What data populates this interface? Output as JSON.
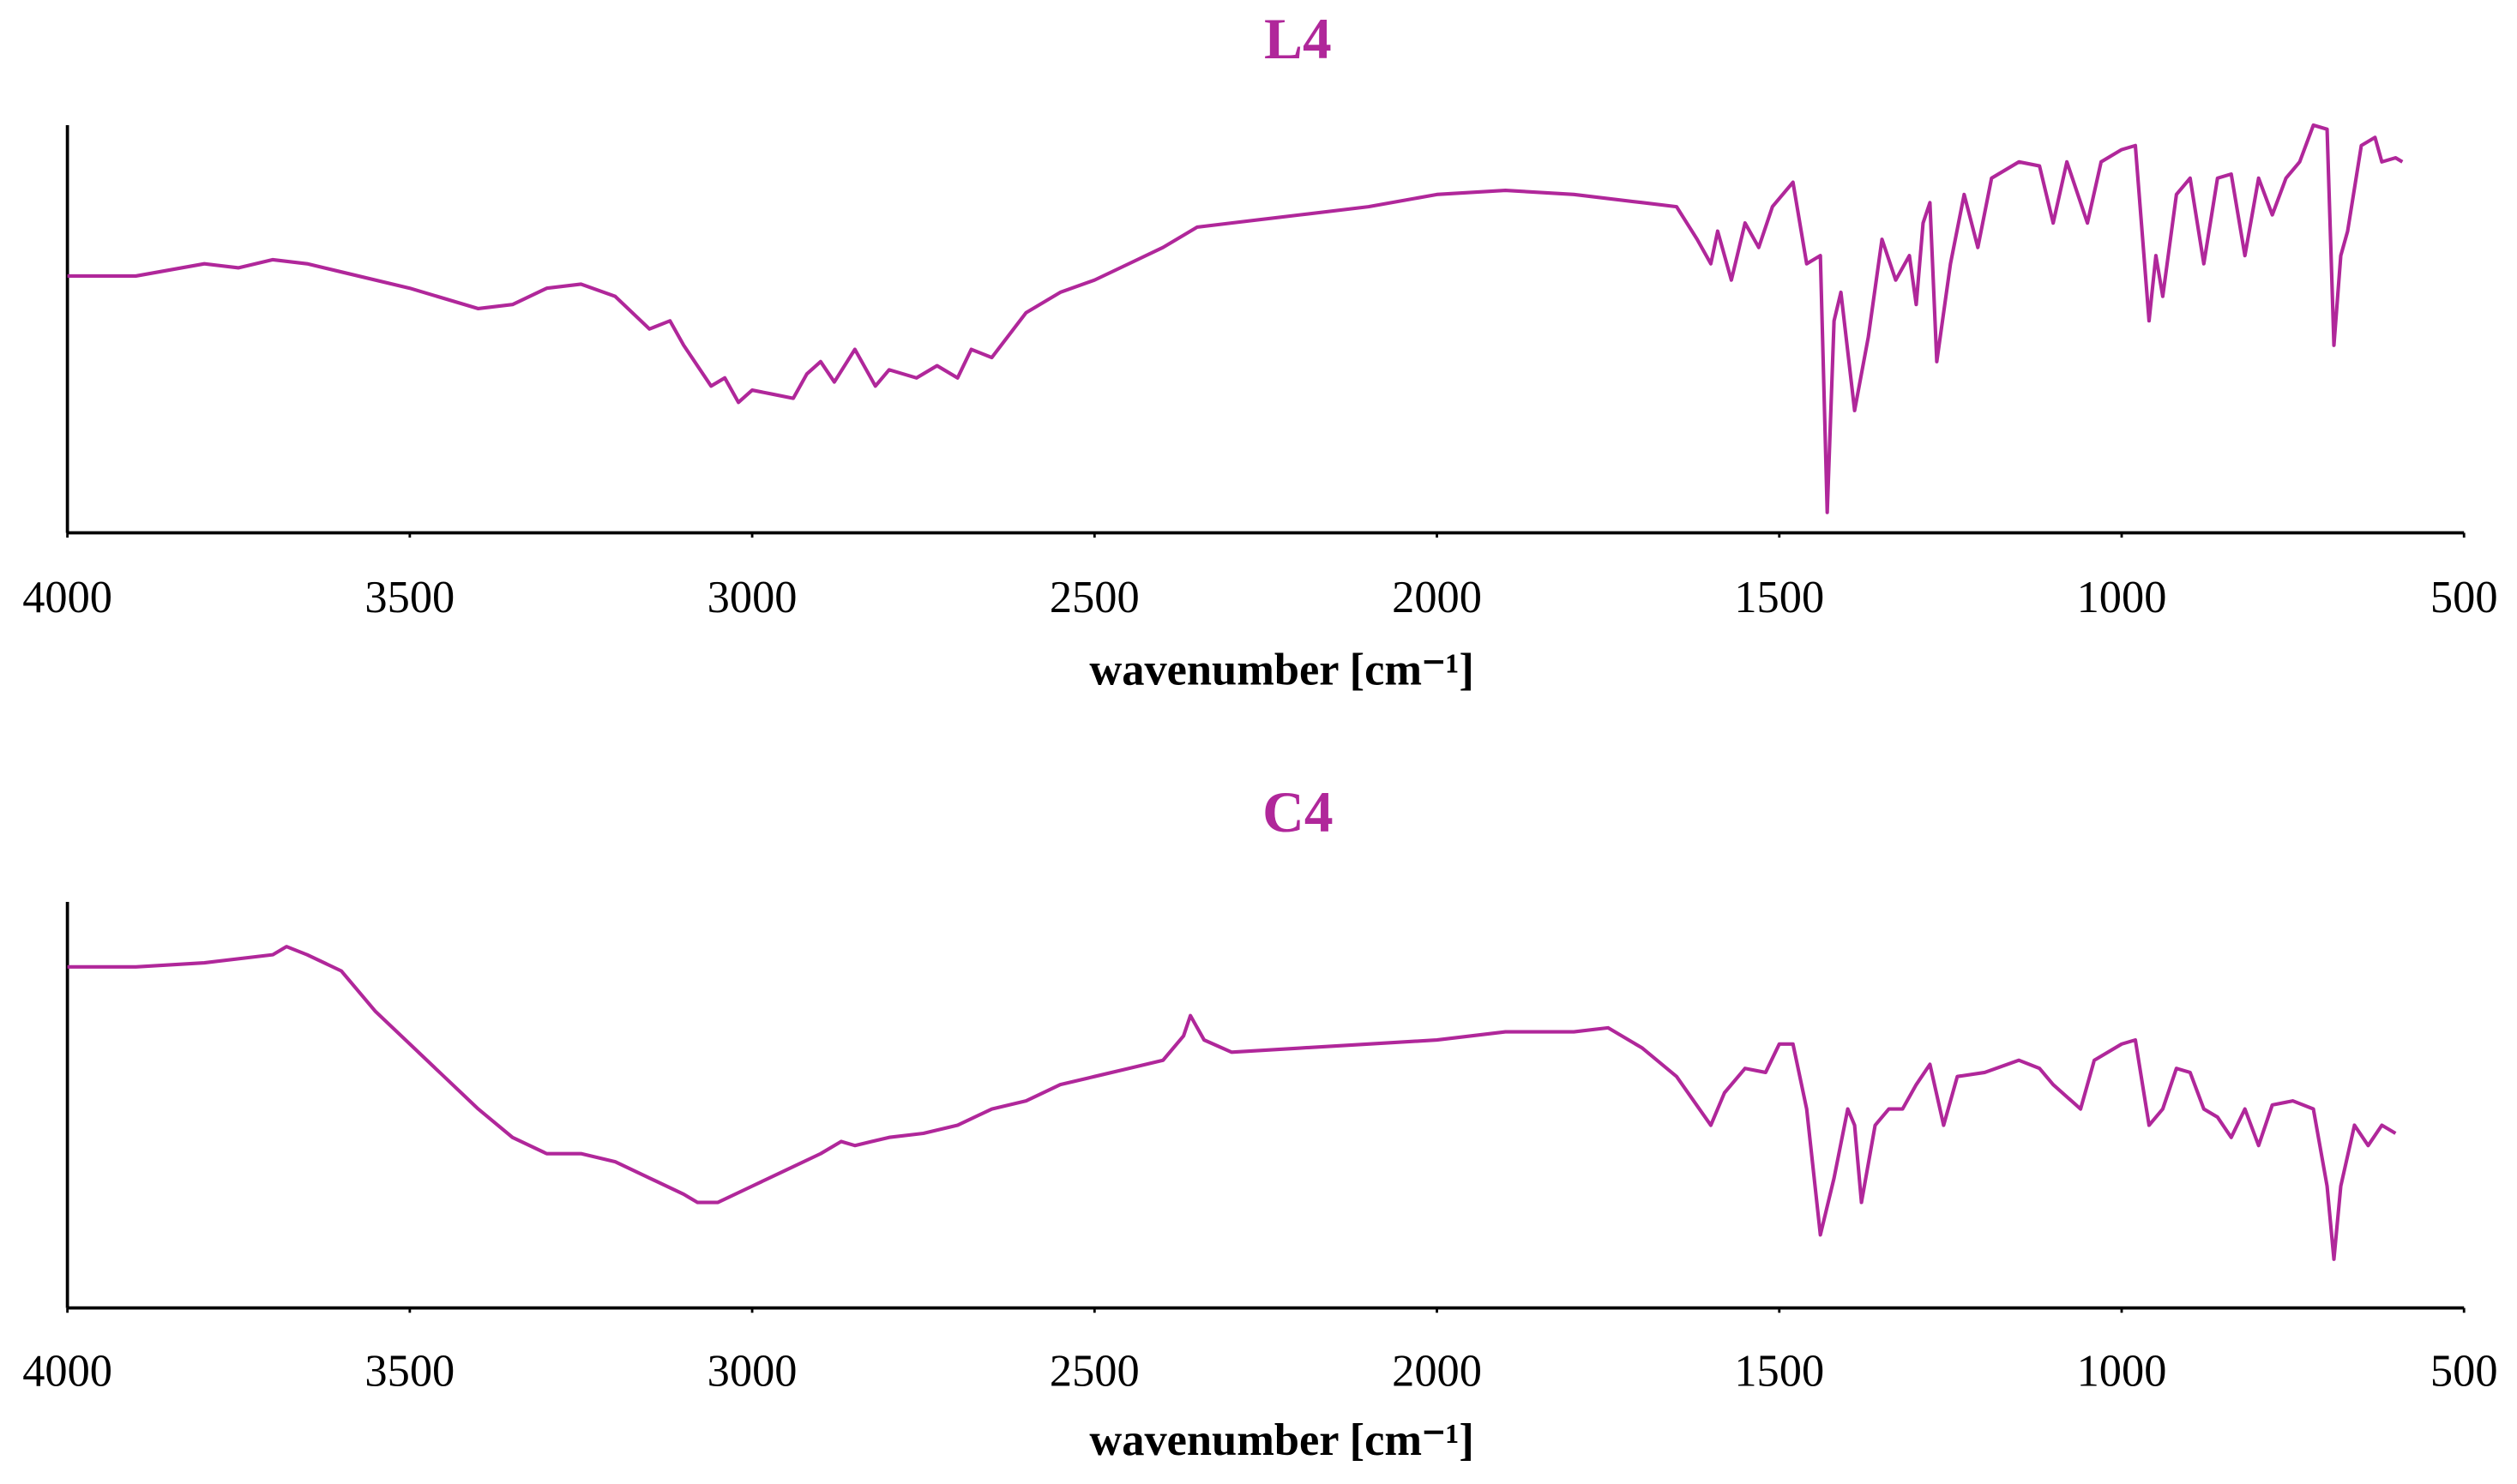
{
  "chart_data": [
    {
      "type": "line",
      "title": "L4",
      "x_label": "wavenumber  [cm⁻¹]",
      "color": "#b0279a",
      "xlim": [
        4000,
        500
      ],
      "xticks": [
        4000,
        3500,
        3000,
        2500,
        2000,
        1500,
        1000,
        500
      ],
      "ylim": [
        0,
        100
      ],
      "x": [
        4000,
        3900,
        3800,
        3750,
        3700,
        3650,
        3600,
        3500,
        3400,
        3350,
        3300,
        3250,
        3200,
        3150,
        3120,
        3100,
        3060,
        3040,
        3020,
        3000,
        2970,
        2940,
        2920,
        2900,
        2880,
        2850,
        2820,
        2800,
        2760,
        2730,
        2700,
        2680,
        2650,
        2600,
        2550,
        2500,
        2450,
        2400,
        2350,
        2300,
        2200,
        2100,
        2000,
        1900,
        1800,
        1700,
        1650,
        1620,
        1600,
        1590,
        1570,
        1550,
        1530,
        1510,
        1490,
        1480,
        1460,
        1440,
        1430,
        1420,
        1410,
        1390,
        1370,
        1350,
        1330,
        1310,
        1300,
        1290,
        1280,
        1270,
        1250,
        1230,
        1210,
        1190,
        1150,
        1120,
        1100,
        1080,
        1050,
        1030,
        1000,
        980,
        960,
        950,
        940,
        920,
        900,
        880,
        860,
        840,
        820,
        800,
        780,
        760,
        740,
        720,
        700,
        690,
        680,
        670,
        650,
        630,
        620,
        600,
        590
      ],
      "values": [
        63,
        63,
        66,
        65,
        67,
        66,
        64,
        60,
        55,
        56,
        60,
        61,
        58,
        50,
        52,
        46,
        36,
        38,
        32,
        35,
        34,
        33,
        39,
        42,
        37,
        45,
        36,
        40,
        38,
        41,
        38,
        45,
        43,
        54,
        59,
        62,
        66,
        70,
        75,
        76,
        78,
        80,
        83,
        84,
        83,
        81,
        80,
        72,
        66,
        74,
        62,
        76,
        70,
        80,
        84,
        86,
        66,
        68,
        5,
        52,
        59,
        30,
        48,
        72,
        62,
        68,
        56,
        76,
        81,
        42,
        66,
        83,
        70,
        87,
        91,
        90,
        76,
        91,
        76,
        91,
        94,
        95,
        52,
        68,
        58,
        83,
        87,
        66,
        87,
        88,
        68,
        87,
        78,
        87,
        91,
        100,
        99,
        46,
        68,
        74,
        95,
        97,
        91,
        92,
        91
      ]
    },
    {
      "type": "line",
      "title": "C4",
      "x_label": "wavenumber  [cm⁻¹]",
      "color": "#b0279a",
      "xlim": [
        4000,
        500
      ],
      "xticks": [
        4000,
        3500,
        3000,
        2500,
        2000,
        1500,
        1000,
        500
      ],
      "ylim": [
        0,
        100
      ],
      "x": [
        4000,
        3900,
        3800,
        3700,
        3680,
        3650,
        3600,
        3550,
        3500,
        3450,
        3400,
        3350,
        3300,
        3250,
        3200,
        3150,
        3100,
        3080,
        3050,
        3000,
        2950,
        2900,
        2870,
        2850,
        2800,
        2750,
        2700,
        2650,
        2600,
        2550,
        2500,
        2450,
        2400,
        2370,
        2360,
        2340,
        2300,
        2200,
        2100,
        2000,
        1900,
        1800,
        1750,
        1700,
        1650,
        1600,
        1580,
        1550,
        1520,
        1500,
        1480,
        1460,
        1440,
        1420,
        1400,
        1390,
        1380,
        1360,
        1340,
        1320,
        1300,
        1280,
        1260,
        1240,
        1200,
        1150,
        1120,
        1100,
        1060,
        1040,
        1000,
        980,
        960,
        940,
        920,
        900,
        880,
        860,
        840,
        820,
        800,
        780,
        750,
        720,
        700,
        690,
        680,
        660,
        640,
        620,
        600
      ],
      "values": [
        84,
        84,
        85,
        87,
        89,
        87,
        83,
        73,
        65,
        57,
        49,
        42,
        38,
        38,
        36,
        32,
        28,
        26,
        26,
        30,
        34,
        38,
        41,
        40,
        42,
        43,
        45,
        49,
        51,
        55,
        57,
        59,
        61,
        67,
        72,
        66,
        63,
        64,
        65,
        66,
        68,
        68,
        69,
        64,
        57,
        45,
        53,
        59,
        58,
        65,
        65,
        49,
        18,
        32,
        49,
        45,
        26,
        45,
        49,
        49,
        55,
        60,
        45,
        57,
        58,
        61,
        59,
        55,
        49,
        61,
        65,
        66,
        45,
        49,
        59,
        58,
        49,
        47,
        42,
        49,
        40,
        50,
        51,
        49,
        30,
        12,
        30,
        45,
        40,
        45,
        43
      ]
    }
  ]
}
